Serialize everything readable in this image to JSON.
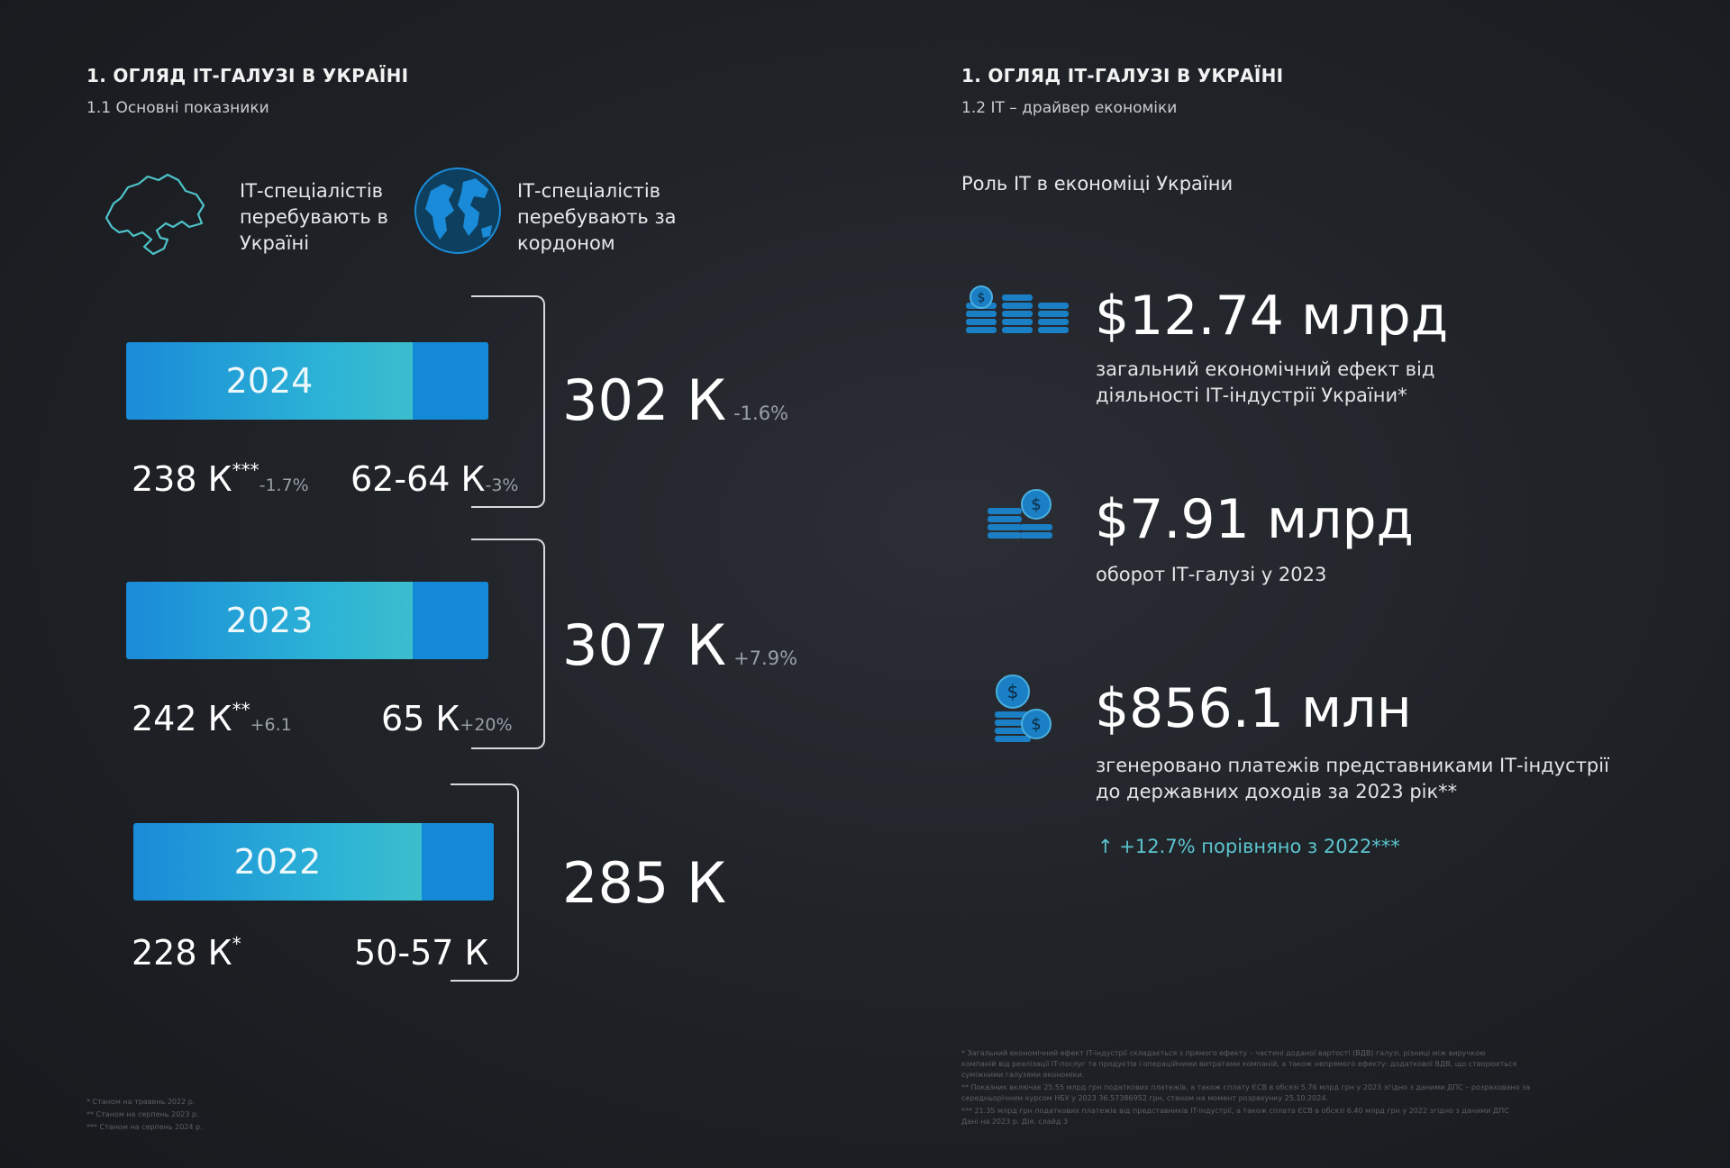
{
  "left": {
    "title": "1. ОГЛЯД ІТ-ГАЛУЗІ В УКРАЇНІ",
    "subtitle": "1.1 Основні показники",
    "legend": {
      "ukraine_label": "ІТ-спеціалістів перебувають в Україні",
      "abroad_label": "ІТ-спеціалістів перебувають за кордоном",
      "ukraine_icon": "ukraine-map-icon",
      "abroad_icon": "globe-icon"
    },
    "years": [
      {
        "year": "2024",
        "in_ukraine": "238 К",
        "in_ukraine_mark": "***",
        "in_ukraine_change": "-1.7%",
        "abroad": "62-64 К",
        "abroad_change": "-3%",
        "total": "302 К",
        "total_change": "-1.6%",
        "ukraine_share": 0.79
      },
      {
        "year": "2023",
        "in_ukraine": "242 К",
        "in_ukraine_mark": "**",
        "in_ukraine_change": "+6.1",
        "abroad": "65 К",
        "abroad_change": "+20%",
        "total": "307 К",
        "total_change": "+7.9%",
        "ukraine_share": 0.79
      },
      {
        "year": "2022",
        "in_ukraine": "228 К",
        "in_ukraine_mark": "*",
        "in_ukraine_change": "",
        "abroad": "50-57 К",
        "abroad_change": "",
        "total": "285 К",
        "total_change": "",
        "ukraine_share": 0.8
      }
    ],
    "footnotes": [
      "* Станом на травень 2022 р.",
      "** Станом на серпень 2023 р.",
      "*** Станом на серпень 2024 р."
    ]
  },
  "right": {
    "title": "1. ОГЛЯД ІТ-ГАЛУЗІ В УКРАЇНІ",
    "subtitle": "1.2 IT – драйвер економіки",
    "heading": "Роль IT в економіці України",
    "metrics": [
      {
        "value": "$12.74 млрд",
        "description": "загальний економічний ефект від діяльності ІТ-індустрії України*",
        "icon": "coin-stacks-icon"
      },
      {
        "value": "$7.91 млрд",
        "description": "оборот ІТ-галузі у 2023",
        "icon": "coins-icon"
      },
      {
        "value": "$856.1 млн",
        "description": "згенеровано платежів представниками ІТ-індустрії до державних доходів за 2023 рік**",
        "icon": "dollar-coins-icon"
      }
    ],
    "growth_arrow": "↑",
    "growth": "+12.7% порівняно з 2022***",
    "footnotes": [
      "* Загальний економічний ефект IT-індустрії складається з прямого ефекту – частині доданої вартості (ВДВ) галузі, різниці між виручкою",
      "компаній від реалізації IT-послуг та продуктів і операційними витратами компаній, а також непрямого ефекту: додаткової ВДВ, що створюється",
      "суміжними галузями економіки.",
      "** Показник включає 25.55 млрд грн податкових платежів, а також сплату ЄСВ в обсязі 5.76 млрд грн у 2023 згідно з даними ДПС – розраховано за",
      "середньорічним курсом НБУ у 2023 36.57386952 грн, станом на момент розрахунку 25.10.2024.",
      "*** 21.35 млрд грн податкових платежів від представників IT-індустрії, а також сплата ЄСВ в обсязі 6.40 млрд грн у 2022 згідно з даними ДПС",
      "Дані на 2023 р. Дія. слайд 3"
    ]
  }
}
